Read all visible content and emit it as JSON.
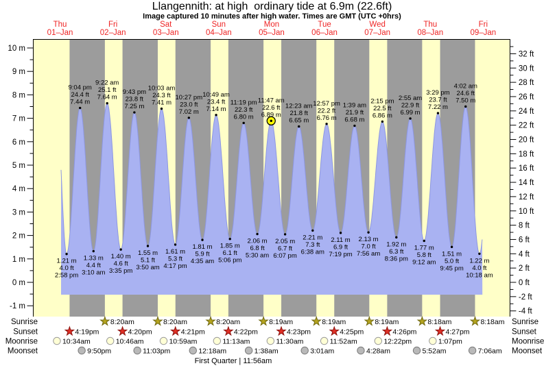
{
  "title": "Llangennith: at high  ordinary tide at 6.9m (22.6ft)",
  "subtitle": "Image captured 10 minutes after high water. Times are GMT (UTC +0hrs)",
  "colors": {
    "background": "#ffffff",
    "day_band": "#ffffc8",
    "night_band": "#9c9c9c",
    "tide_fill": "#a9b2f2",
    "tide_edge": "#8d97e2",
    "day_label": "#ee2424",
    "axis": "#000000",
    "annotation_text": "#000000",
    "current_marker_fill": "#ffff00",
    "current_marker_edge": "#000000",
    "sunrise_star": "#b5a41f",
    "sunrise_star_edge": "#6f680f",
    "sunset_star": "#e03026",
    "sunset_star_edge": "#8c120e",
    "moonrise_circle": "#ffffd6",
    "moonrise_circle_edge": "#9a9a9a",
    "moonset_circle": "#b9b9b9",
    "moonset_circle_edge": "#787878"
  },
  "chart_data": {
    "type": "area",
    "title": "Llangennith: at high  ordinary tide at 6.9m (22.6ft)",
    "subtitle": "Image captured 10 minutes after high water. Times are GMT (UTC +0hrs)",
    "x_axis_days": [
      {
        "dow": "Thu",
        "date": "01–Jan"
      },
      {
        "dow": "Fri",
        "date": "02–Jan"
      },
      {
        "dow": "Sat",
        "date": "03–Jan"
      },
      {
        "dow": "Sun",
        "date": "04–Jan"
      },
      {
        "dow": "Mon",
        "date": "05–Jan"
      },
      {
        "dow": "Tue",
        "date": "06–Jan"
      },
      {
        "dow": "Wed",
        "date": "07–Jan"
      },
      {
        "dow": "Thu",
        "date": "08–Jan"
      },
      {
        "dow": "Fri",
        "date": "09–Jan"
      }
    ],
    "ylim_m": [
      -1,
      10
    ],
    "ylim_ft": [
      -4,
      32
    ],
    "grid": false,
    "legend_position": "none",
    "y_axis_left_ticks": [
      "10 m",
      "9 m",
      "8 m",
      "7 m",
      "6 m",
      "5 m",
      "4 m",
      "3 m",
      "2 m",
      "1 m",
      "0 m",
      "-1 m"
    ],
    "y_axis_right_ticks": [
      "32 ft",
      "30 ft",
      "28 ft",
      "26 ft",
      "24 ft",
      "22 ft",
      "20 ft",
      "18 ft",
      "16 ft",
      "14 ft",
      "12 ft",
      "10 ft",
      "8 ft",
      "6 ft",
      "4 ft",
      "2 ft",
      "0 ft",
      "-2 ft",
      "-4 ft"
    ],
    "tides": [
      {
        "day": 0,
        "type": "low",
        "time": "2:58 pm",
        "ft": "4.0",
        "m": "1.21"
      },
      {
        "day": 0,
        "type": "high",
        "time": "9:04 pm",
        "ft": "24.4",
        "m": "7.44"
      },
      {
        "day": 1,
        "type": "low",
        "time": "3:10 am",
        "ft": "4.4",
        "m": "1.33"
      },
      {
        "day": 1,
        "type": "high",
        "time": "9:22 am",
        "ft": "25.1",
        "m": "7.64"
      },
      {
        "day": 1,
        "type": "low",
        "time": "3:35 pm",
        "ft": "4.6",
        "m": "1.40"
      },
      {
        "day": 1,
        "type": "high",
        "time": "9:43 pm",
        "ft": "23.8",
        "m": "7.25"
      },
      {
        "day": 2,
        "type": "low",
        "time": "3:50 am",
        "ft": "5.1",
        "m": "1.55"
      },
      {
        "day": 2,
        "type": "high",
        "time": "10:03 am",
        "ft": "24.3",
        "m": "7.41"
      },
      {
        "day": 2,
        "type": "low",
        "time": "4:17 pm",
        "ft": "5.3",
        "m": "1.61"
      },
      {
        "day": 2,
        "type": "high",
        "time": "10:27 pm",
        "ft": "23.0",
        "m": "7.02"
      },
      {
        "day": 3,
        "type": "low",
        "time": "4:35 am",
        "ft": "5.9",
        "m": "1.81"
      },
      {
        "day": 3,
        "type": "high",
        "time": "10:49 am",
        "ft": "23.4",
        "m": "7.14"
      },
      {
        "day": 3,
        "type": "low",
        "time": "5:06 pm",
        "ft": "6.1",
        "m": "1.85"
      },
      {
        "day": 3,
        "type": "high",
        "time": "11:19 pm",
        "ft": "22.3",
        "m": "6.80"
      },
      {
        "day": 4,
        "type": "low",
        "time": "5:30 am",
        "ft": "6.8",
        "m": "2.06"
      },
      {
        "day": 4,
        "type": "high",
        "time": "11:47 am",
        "ft": "22.6",
        "m": "6.89"
      },
      {
        "day": 4,
        "type": "low",
        "time": "6:07 pm",
        "ft": "6.7",
        "m": "2.05"
      },
      {
        "day": 5,
        "type": "high",
        "time": "12:23 am",
        "ft": "21.8",
        "m": "6.65"
      },
      {
        "day": 5,
        "type": "low",
        "time": "6:38 am",
        "ft": "7.3",
        "m": "2.21"
      },
      {
        "day": 5,
        "type": "high",
        "time": "12:57 pm",
        "ft": "22.2",
        "m": "6.76"
      },
      {
        "day": 5,
        "type": "low",
        "time": "7:19 pm",
        "ft": "6.9",
        "m": "2.11"
      },
      {
        "day": 6,
        "type": "high",
        "time": "1:39 am",
        "ft": "21.9",
        "m": "6.68"
      },
      {
        "day": 6,
        "type": "low",
        "time": "7:56 am",
        "ft": "7.0",
        "m": "2.13"
      },
      {
        "day": 6,
        "type": "high",
        "time": "2:15 pm",
        "ft": "22.5",
        "m": "6.86"
      },
      {
        "day": 6,
        "type": "low",
        "time": "8:36 pm",
        "ft": "6.3",
        "m": "1.92"
      },
      {
        "day": 7,
        "type": "high",
        "time": "2:55 am",
        "ft": "22.9",
        "m": "6.99"
      },
      {
        "day": 7,
        "type": "low",
        "time": "9:12 am",
        "ft": "5.8",
        "m": "1.77"
      },
      {
        "day": 7,
        "type": "high",
        "time": "3:29 pm",
        "ft": "23.7",
        "m": "7.22"
      },
      {
        "day": 7,
        "type": "low",
        "time": "9:45 pm",
        "ft": "5.0",
        "m": "1.51"
      },
      {
        "day": 8,
        "type": "high",
        "time": "4:02 am",
        "ft": "24.6",
        "m": "7.50"
      },
      {
        "day": 8,
        "type": "low",
        "time": "10:18 am",
        "ft": "4.0",
        "m": "1.22"
      }
    ],
    "current_marker": {
      "day": 4,
      "time": "11:47 am"
    }
  },
  "astro": {
    "rows": [
      {
        "id": "sunrise",
        "label": "Sunrise",
        "icon": "star",
        "events": [
          {
            "day": 1,
            "time": "8:20am"
          },
          {
            "day": 2,
            "time": "8:20am"
          },
          {
            "day": 3,
            "time": "8:20am"
          },
          {
            "day": 4,
            "time": "8:19am"
          },
          {
            "day": 5,
            "time": "8:19am"
          },
          {
            "day": 6,
            "time": "8:19am"
          },
          {
            "day": 7,
            "time": "8:18am"
          },
          {
            "day": 8,
            "time": "8:18am"
          }
        ]
      },
      {
        "id": "sunset",
        "label": "Sunset",
        "icon": "star",
        "events": [
          {
            "day": 0,
            "time": "4:19pm"
          },
          {
            "day": 1,
            "time": "4:20pm"
          },
          {
            "day": 2,
            "time": "4:21pm"
          },
          {
            "day": 3,
            "time": "4:22pm"
          },
          {
            "day": 4,
            "time": "4:23pm"
          },
          {
            "day": 5,
            "time": "4:25pm"
          },
          {
            "day": 6,
            "time": "4:26pm"
          },
          {
            "day": 7,
            "time": "4:27pm"
          }
        ]
      },
      {
        "id": "moonrise",
        "label": "Moonrise",
        "icon": "circle",
        "events": [
          {
            "day": 0,
            "time": "10:34am"
          },
          {
            "day": 1,
            "time": "10:46am"
          },
          {
            "day": 2,
            "time": "10:59am"
          },
          {
            "day": 3,
            "time": "11:13am"
          },
          {
            "day": 4,
            "time": "11:30am"
          },
          {
            "day": 5,
            "time": "11:52am"
          },
          {
            "day": 6,
            "time": "12:22pm"
          },
          {
            "day": 7,
            "time": "1:07pm"
          }
        ]
      },
      {
        "id": "moonset",
        "label": "Moonset",
        "icon": "circle",
        "events": [
          {
            "day": 0,
            "time": "9:50pm"
          },
          {
            "day": 1,
            "time": "11:03pm"
          },
          {
            "day": 3,
            "time": "12:18am"
          },
          {
            "day": 4,
            "time": "1:38am"
          },
          {
            "day": 5,
            "time": "3:01am"
          },
          {
            "day": 6,
            "time": "4:28am"
          },
          {
            "day": 7,
            "time": "5:52am"
          },
          {
            "day": 8,
            "time": "7:06am"
          }
        ]
      }
    ],
    "footer": "First Quarter | 11:56am"
  }
}
